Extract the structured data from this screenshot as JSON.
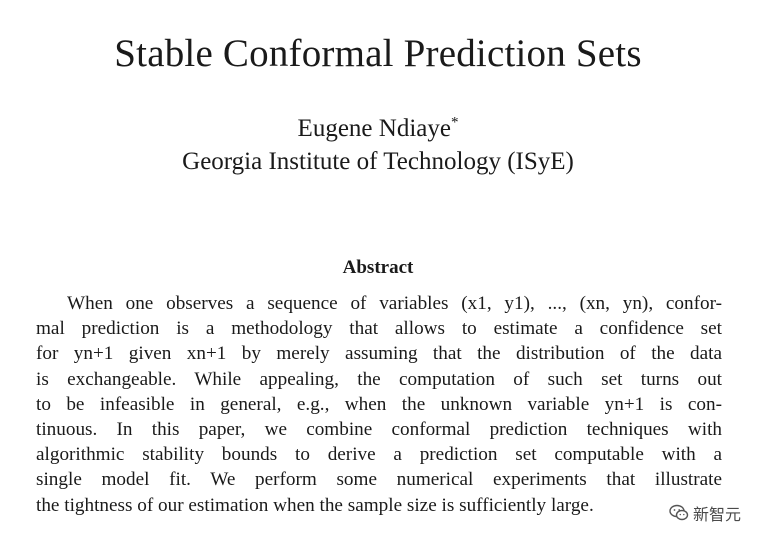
{
  "paper": {
    "title": "Stable Conformal Prediction Sets",
    "author": "Eugene Ndiaye",
    "author_mark": "*",
    "affiliation": "Georgia Institute of Technology (ISyE)",
    "abstract_heading": "Abstract",
    "abstract_lines": [
      "When one observes a sequence of variables (x1, y1), ..., (xn, yn), confor-",
      "mal prediction is a methodology that allows to estimate a confidence set",
      "for yn+1 given xn+1 by merely assuming that the distribution of the data",
      "is exchangeable. While appealing, the computation of such set turns out",
      "to be infeasible in general, e.g., when the unknown variable yn+1 is con-",
      "tinuous. In this paper, we combine conformal prediction techniques with",
      "algorithmic stability bounds to derive a prediction set computable with a",
      "single model fit. We perform some numerical experiments that illustrate",
      "the tightness of our estimation when the sample size is sufficiently large."
    ]
  },
  "watermark": {
    "text": "新智元",
    "icon": "wechat-logo-icon"
  }
}
